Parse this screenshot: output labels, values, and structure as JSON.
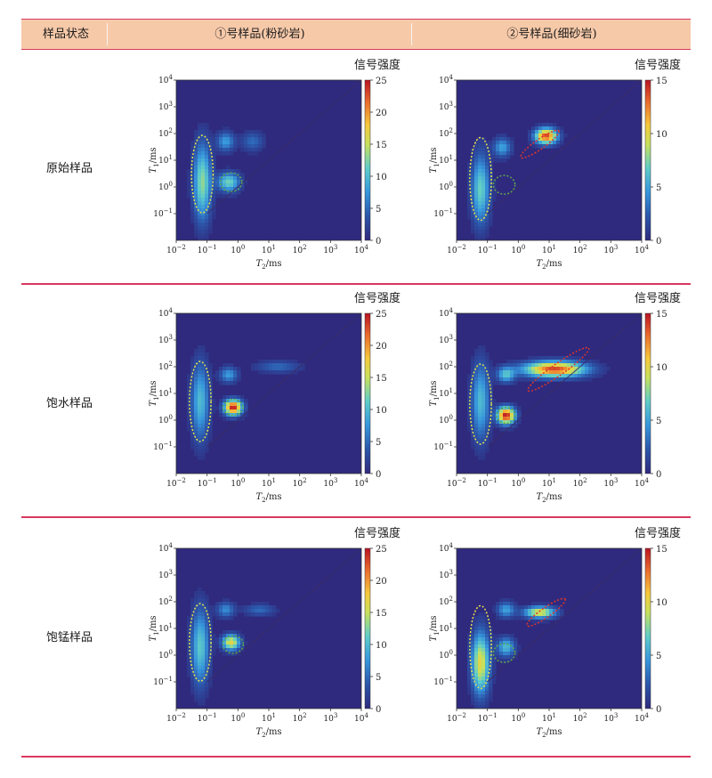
{
  "table": {
    "headers": [
      "样品状态",
      "①号样品(粉砂岩)",
      "②号样品(细砂岩)"
    ],
    "rows": [
      {
        "label": "原始样品"
      },
      {
        "label": "饱水样品"
      },
      {
        "label": "饱锰样品"
      }
    ]
  },
  "colors": {
    "rule": "#d9385f",
    "header_bg": "#f6c9a9",
    "background_field": "#2f2a7e"
  },
  "chart_data": [
    {
      "type": "heatmap",
      "panel": "原始样品-①号样品",
      "colorbar_label": "信号强度",
      "colorbar_ticks": [
        0,
        5,
        10,
        15,
        20,
        25
      ],
      "colorbar_range": [
        0,
        25
      ],
      "xlabel": "T2/ms",
      "ylabel": "T1/ms",
      "x_ticks": [
        "10^-2",
        "10^-1",
        "10^0",
        "10^1",
        "10^2",
        "10^3",
        "10^4"
      ],
      "y_ticks": [
        "10^-1",
        "10^0",
        "10^1",
        "10^2",
        "10^3",
        "10^4"
      ],
      "x_log_range": [
        -2,
        4
      ],
      "y_log_range": [
        -2,
        4
      ],
      "peaks": [
        {
          "x": 0.07,
          "y": 1.5,
          "sx": 0.2,
          "sy": 1.0,
          "v": 13
        },
        {
          "x": 0.5,
          "y": 1.5,
          "sx": 0.25,
          "sy": 0.25,
          "v": 12
        },
        {
          "x": 0.4,
          "y": 50,
          "sx": 0.2,
          "sy": 0.25,
          "v": 8
        },
        {
          "x": 3,
          "y": 50,
          "sx": 0.25,
          "sy": 0.25,
          "v": 5
        }
      ],
      "ellipses": [
        {
          "color": "yellow",
          "cx": 0.07,
          "cy": 3,
          "rx": 0.35,
          "ry": 1.45
        },
        {
          "color": "green",
          "cx": 0.6,
          "cy": 1.5,
          "rx": 0.35,
          "ry": 0.35
        }
      ]
    },
    {
      "type": "heatmap",
      "panel": "原始样品-②号样品",
      "colorbar_label": "信号强度",
      "colorbar_ticks": [
        0,
        5,
        10,
        15
      ],
      "colorbar_range": [
        0,
        15
      ],
      "xlabel": "T2/ms",
      "ylabel": "T1/ms",
      "x_ticks": [
        "10^-2",
        "10^-1",
        "10^0",
        "10^1",
        "10^2",
        "10^3",
        "10^4"
      ],
      "y_ticks": [
        "10^-1",
        "10^0",
        "10^1",
        "10^2",
        "10^3",
        "10^4"
      ],
      "x_log_range": [
        -2,
        4
      ],
      "y_log_range": [
        -2,
        4
      ],
      "peaks": [
        {
          "x": 0.06,
          "y": 0.8,
          "sx": 0.2,
          "sy": 0.9,
          "v": 7
        },
        {
          "x": 0.3,
          "y": 30,
          "sx": 0.2,
          "sy": 0.25,
          "v": 5
        },
        {
          "x": 8,
          "y": 80,
          "sx": 0.25,
          "sy": 0.2,
          "v": 14
        }
      ],
      "ellipses": [
        {
          "color": "yellow",
          "cx": 0.06,
          "cy": 2,
          "rx": 0.35,
          "ry": 1.55
        },
        {
          "color": "green",
          "cx": 0.35,
          "cy": 1.2,
          "rx": 0.35,
          "ry": 0.35
        },
        {
          "color": "red",
          "cx": 5,
          "cy": 40,
          "rx": 0.75,
          "ry": 0.18,
          "rot": -35
        }
      ]
    },
    {
      "type": "heatmap",
      "panel": "饱水样品-①号样品",
      "colorbar_label": "信号强度",
      "colorbar_ticks": [
        0,
        5,
        10,
        15,
        20,
        25
      ],
      "colorbar_range": [
        0,
        25
      ],
      "xlabel": "T2/ms",
      "ylabel": "T1/ms",
      "x_ticks": [
        "10^-2",
        "10^-1",
        "10^0",
        "10^1",
        "10^2",
        "10^3",
        "10^4"
      ],
      "y_ticks": [
        "10^-1",
        "10^0",
        "10^1",
        "10^2",
        "10^3",
        "10^4"
      ],
      "x_log_range": [
        -2,
        4
      ],
      "y_log_range": [
        -2,
        4
      ],
      "peaks": [
        {
          "x": 0.06,
          "y": 5,
          "sx": 0.2,
          "sy": 1.0,
          "v": 10
        },
        {
          "x": 0.7,
          "y": 3,
          "sx": 0.2,
          "sy": 0.2,
          "v": 25
        },
        {
          "x": 0.5,
          "y": 50,
          "sx": 0.2,
          "sy": 0.2,
          "v": 8
        },
        {
          "x": 20,
          "y": 100,
          "sx": 0.5,
          "sy": 0.15,
          "v": 5
        }
      ],
      "ellipses": [
        {
          "color": "yellow",
          "cx": 0.06,
          "cy": 5,
          "rx": 0.35,
          "ry": 1.5
        },
        {
          "color": "green",
          "cx": 0.7,
          "cy": 3,
          "rx": 0.32,
          "ry": 0.3
        }
      ]
    },
    {
      "type": "heatmap",
      "panel": "饱水样品-②号样品",
      "colorbar_label": "信号强度",
      "colorbar_ticks": [
        0,
        5,
        10,
        15
      ],
      "colorbar_range": [
        0,
        15
      ],
      "xlabel": "T2/ms",
      "ylabel": "T1/ms",
      "x_ticks": [
        "10^-2",
        "10^-1",
        "10^0",
        "10^1",
        "10^2",
        "10^3",
        "10^4"
      ],
      "y_ticks": [
        "10^-1",
        "10^0",
        "10^1",
        "10^2",
        "10^3",
        "10^4"
      ],
      "x_log_range": [
        -2,
        4
      ],
      "y_log_range": [
        -2,
        4
      ],
      "peaks": [
        {
          "x": 0.06,
          "y": 5,
          "sx": 0.2,
          "sy": 1.0,
          "v": 6
        },
        {
          "x": 0.4,
          "y": 1.5,
          "sx": 0.2,
          "sy": 0.22,
          "v": 15
        },
        {
          "x": 0.4,
          "y": 50,
          "sx": 0.2,
          "sy": 0.2,
          "v": 6
        },
        {
          "x": 15,
          "y": 80,
          "sx": 0.7,
          "sy": 0.2,
          "v": 14
        }
      ],
      "ellipses": [
        {
          "color": "yellow",
          "cx": 0.06,
          "cy": 4,
          "rx": 0.35,
          "ry": 1.5
        },
        {
          "color": "green",
          "cx": 0.4,
          "cy": 1.5,
          "rx": 0.3,
          "ry": 0.3
        },
        {
          "color": "red",
          "cx": 20,
          "cy": 80,
          "rx": 1.2,
          "ry": 0.22,
          "rot": -35
        }
      ]
    },
    {
      "type": "heatmap",
      "panel": "饱锰样品-①号样品",
      "colorbar_label": "信号强度",
      "colorbar_ticks": [
        0,
        5,
        10,
        15,
        20,
        25
      ],
      "colorbar_range": [
        0,
        25
      ],
      "xlabel": "T2/ms",
      "ylabel": "T1/ms",
      "x_ticks": [
        "10^-2",
        "10^-1",
        "10^0",
        "10^1",
        "10^2",
        "10^3",
        "10^4"
      ],
      "y_ticks": [
        "10^-1",
        "10^0",
        "10^1",
        "10^2",
        "10^3",
        "10^4"
      ],
      "x_log_range": [
        -2,
        4
      ],
      "y_log_range": [
        -2,
        4
      ],
      "peaks": [
        {
          "x": 0.06,
          "y": 2,
          "sx": 0.2,
          "sy": 1.0,
          "v": 11
        },
        {
          "x": 0.6,
          "y": 3,
          "sx": 0.2,
          "sy": 0.2,
          "v": 17
        },
        {
          "x": 0.4,
          "y": 50,
          "sx": 0.2,
          "sy": 0.2,
          "v": 7
        },
        {
          "x": 5,
          "y": 50,
          "sx": 0.35,
          "sy": 0.15,
          "v": 5
        }
      ],
      "ellipses": [
        {
          "color": "yellow",
          "cx": 0.06,
          "cy": 3,
          "rx": 0.35,
          "ry": 1.45
        },
        {
          "color": "green",
          "cx": 0.7,
          "cy": 2.5,
          "rx": 0.33,
          "ry": 0.33
        }
      ]
    },
    {
      "type": "heatmap",
      "panel": "饱锰样品-②号样品",
      "colorbar_label": "信号强度",
      "colorbar_ticks": [
        0,
        5,
        10,
        15
      ],
      "colorbar_range": [
        0,
        15
      ],
      "xlabel": "T2/ms",
      "ylabel": "T1/ms",
      "x_ticks": [
        "10^-2",
        "10^-1",
        "10^0",
        "10^1",
        "10^2",
        "10^3",
        "10^4"
      ],
      "y_ticks": [
        "10^-1",
        "10^0",
        "10^1",
        "10^2",
        "10^3",
        "10^4"
      ],
      "x_log_range": [
        -2,
        4
      ],
      "y_log_range": [
        -2,
        4
      ],
      "peaks": [
        {
          "x": 0.06,
          "y": 0.5,
          "sx": 0.2,
          "sy": 0.8,
          "v": 10
        },
        {
          "x": 0.4,
          "y": 2,
          "sx": 0.2,
          "sy": 0.25,
          "v": 6
        },
        {
          "x": 0.4,
          "y": 50,
          "sx": 0.2,
          "sy": 0.2,
          "v": 5
        },
        {
          "x": 5,
          "y": 40,
          "sx": 0.35,
          "sy": 0.15,
          "v": 10
        }
      ],
      "ellipses": [
        {
          "color": "yellow",
          "cx": 0.06,
          "cy": 2,
          "rx": 0.35,
          "ry": 1.55
        },
        {
          "color": "green",
          "cx": 0.35,
          "cy": 1.2,
          "rx": 0.35,
          "ry": 0.35
        },
        {
          "color": "red",
          "cx": 8,
          "cy": 40,
          "rx": 0.75,
          "ry": 0.18,
          "rot": -35
        }
      ]
    }
  ]
}
